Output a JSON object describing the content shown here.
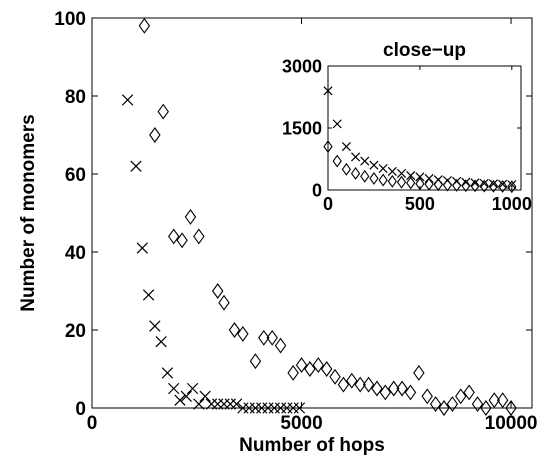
{
  "chart_data": [
    {
      "type": "scatter",
      "title": "",
      "xlabel": "Number of hops",
      "ylabel": "Number of monomers",
      "xlim": [
        0,
        10500
      ],
      "ylim": [
        0,
        100
      ],
      "xticks": [
        "0",
        "5000",
        "10000"
      ],
      "xtick_values": [
        0,
        5000,
        10000
      ],
      "yticks": [
        "0",
        "20",
        "40",
        "60",
        "80",
        "100"
      ],
      "ytick_values": [
        0,
        20,
        40,
        60,
        80,
        100
      ],
      "grid": false,
      "series": [
        {
          "marker": "x",
          "x": [
            850,
            1050,
            1200,
            1350,
            1500,
            1650,
            1800,
            1950,
            2100,
            2250,
            2400,
            2550,
            2700,
            2850,
            3000,
            3150,
            3300,
            3450,
            3600,
            3750,
            3900,
            4050,
            4200,
            4350,
            4500,
            4650,
            4800,
            4950
          ],
          "y": [
            79,
            62,
            41,
            29,
            21,
            17,
            9,
            5,
            2,
            3,
            5,
            1,
            3,
            1,
            1,
            1,
            1,
            1,
            0,
            0,
            0,
            0,
            0,
            0,
            0,
            0,
            0,
            0
          ]
        },
        {
          "marker": "diamond",
          "x": [
            1250,
            1500,
            1700,
            1950,
            2150,
            2350,
            2550,
            3000,
            3150,
            3400,
            3600,
            3900,
            4100,
            4300,
            4500,
            4800,
            5000,
            5200,
            5400,
            5600,
            5800,
            6000,
            6200,
            6400,
            6600,
            6800,
            7000,
            7200,
            7400,
            7600,
            7800,
            8000,
            8200,
            8400,
            8600,
            8800,
            9000,
            9200,
            9400,
            9600,
            9800,
            10000
          ],
          "y": [
            98,
            70,
            76,
            44,
            43,
            49,
            44,
            30,
            27,
            20,
            19,
            12,
            18,
            18,
            16,
            9,
            11,
            10,
            11,
            10,
            8,
            6,
            7,
            6,
            6,
            5,
            4,
            5,
            5,
            4,
            9,
            3,
            1,
            0,
            1,
            3,
            4,
            1,
            0,
            2,
            2,
            0
          ]
        }
      ]
    },
    {
      "type": "scatter",
      "title": "close−up",
      "xlabel": "",
      "ylabel": "",
      "xlim": [
        0,
        1050
      ],
      "ylim": [
        0,
        3000
      ],
      "xticks": [
        "0",
        "500",
        "1000"
      ],
      "xtick_values": [
        0,
        500,
        1000
      ],
      "yticks": [
        "0",
        "1500",
        "3000"
      ],
      "ytick_values": [
        0,
        1500,
        3000
      ],
      "grid": false,
      "series": [
        {
          "marker": "x",
          "x": [
            0,
            50,
            100,
            150,
            200,
            250,
            300,
            350,
            400,
            450,
            500,
            550,
            600,
            650,
            700,
            750,
            800,
            850,
            900,
            950,
            1000
          ],
          "y": [
            2400,
            1600,
            1050,
            800,
            700,
            600,
            520,
            450,
            400,
            350,
            320,
            280,
            250,
            230,
            210,
            190,
            175,
            160,
            150,
            140,
            130
          ]
        },
        {
          "marker": "diamond",
          "x": [
            0,
            50,
            100,
            150,
            200,
            250,
            300,
            350,
            400,
            450,
            500,
            550,
            600,
            650,
            700,
            750,
            800,
            850,
            900,
            950,
            1000
          ],
          "y": [
            1050,
            700,
            500,
            400,
            330,
            280,
            240,
            210,
            190,
            170,
            150,
            140,
            130,
            120,
            110,
            105,
            100,
            95,
            90,
            85,
            80
          ]
        }
      ]
    }
  ]
}
